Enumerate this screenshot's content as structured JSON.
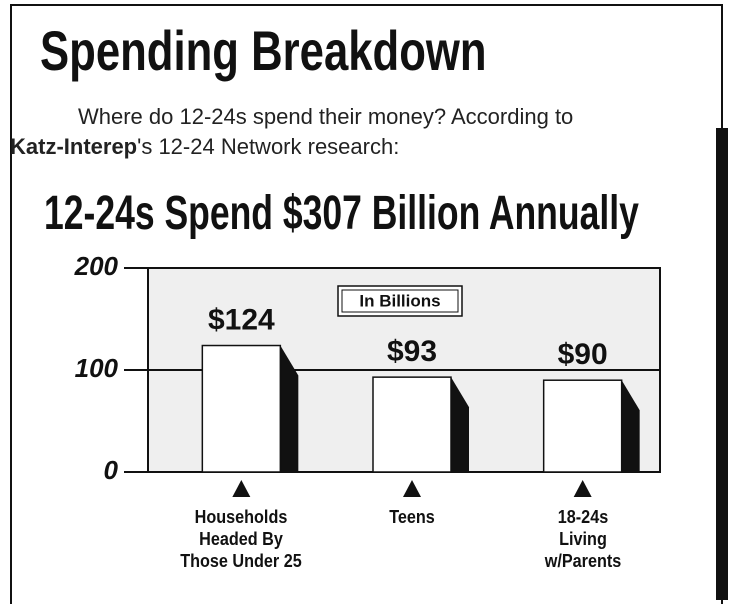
{
  "header": {
    "title": "Spending Breakdown",
    "intro_before": "Where do 12-24s spend their money? According to ",
    "intro_bold": "Katz-Interep",
    "intro_after": "'s 12-24 Network research:"
  },
  "chart_data": {
    "type": "bar",
    "title": "12-24s Spend $307 Billion Annually",
    "legend": "In Billions",
    "categories": [
      "Households Headed By Those Under 25",
      "Teens",
      "18-24s Living w/Parents"
    ],
    "values": [
      124,
      93,
      90
    ],
    "value_labels": [
      "$124",
      "$93",
      "$90"
    ],
    "color": "#ffffff",
    "ylim": [
      0,
      200
    ],
    "yticks": [
      0,
      100,
      200
    ],
    "grid": true
  }
}
